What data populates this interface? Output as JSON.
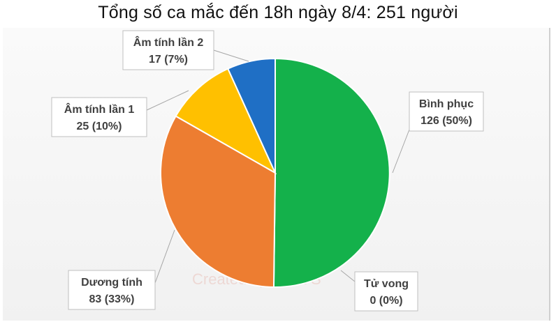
{
  "chart_data": {
    "type": "pie",
    "title": "Tổng số ca mắc đến 18h ngày 8/4: 251 người",
    "slices": [
      {
        "label": "Bình phục",
        "value": 126,
        "pct_text": "126 (50%)",
        "color": "#14b14b"
      },
      {
        "label": "Tử vong",
        "value": 0,
        "pct_text": "0 (0%)",
        "color": "#7f7f7f"
      },
      {
        "label": "Dương tính",
        "value": 83,
        "pct_text": "83 (33%)",
        "color": "#ed7d31"
      },
      {
        "label": "Âm tính lần 1",
        "value": 25,
        "pct_text": "25 (10%)",
        "color": "#ffc000"
      },
      {
        "label": "Âm tính lần 2",
        "value": 17,
        "pct_text": "17 (7%)",
        "color": "#1f6fc5"
      }
    ]
  },
  "watermark": "Created by Paint S"
}
